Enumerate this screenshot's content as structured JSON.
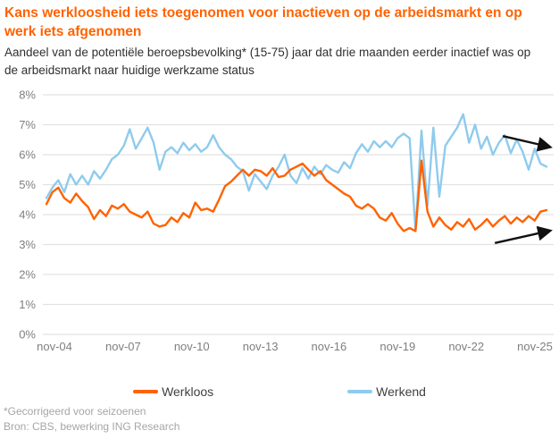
{
  "header": {
    "title": "Kans werkloosheid iets toegenomen voor inactieven op de arbeidsmarkt en op werk iets afgenomen",
    "subtitle": "Aandeel van de potentiële beroepsbevolking* (15-75) jaar dat drie maanden eerder inactief was op de arbeidsmarkt naar huidige werkzame status"
  },
  "chart_data": {
    "type": "line",
    "title": "Kans werkloosheid iets toegenomen voor inactieven op de arbeidsmarkt en op werk iets afgenomen",
    "subtitle": "Aandeel van de potentiële beroepsbevolking* (15-75) jaar dat drie maanden eerder inactief was op de arbeidsmarkt naar huidige werkzame status",
    "x_unit": "months since nov-2004 (values sampled quarterly)",
    "x_step_months": 3,
    "x_tick_months": [
      0,
      36,
      72,
      108,
      144,
      180,
      216,
      252
    ],
    "x_tick_labels": [
      "nov-04",
      "nov-07",
      "nov-10",
      "nov-13",
      "nov-16",
      "nov-19",
      "nov-22",
      "nov-25"
    ],
    "ylim": [
      0,
      8
    ],
    "y_tick_labels": [
      "0%",
      "1%",
      "2%",
      "3%",
      "4%",
      "5%",
      "6%",
      "7%",
      "8%"
    ],
    "grid": "horizontal",
    "legend_position": "bottom",
    "series": [
      {
        "name": "Werkend",
        "color": "#8FCBED",
        "values": [
          4.55,
          4.9,
          5.15,
          4.75,
          5.35,
          5.0,
          5.3,
          5.0,
          5.45,
          5.2,
          5.5,
          5.85,
          6.0,
          6.3,
          6.85,
          6.2,
          6.55,
          6.9,
          6.4,
          5.5,
          6.1,
          6.25,
          6.05,
          6.4,
          6.15,
          6.35,
          6.1,
          6.25,
          6.65,
          6.25,
          6.0,
          5.85,
          5.6,
          5.45,
          4.8,
          5.35,
          5.1,
          4.85,
          5.3,
          5.6,
          6.0,
          5.3,
          5.05,
          5.55,
          5.2,
          5.6,
          5.35,
          5.65,
          5.5,
          5.4,
          5.75,
          5.55,
          6.05,
          6.35,
          6.1,
          6.45,
          6.25,
          6.45,
          6.25,
          6.55,
          6.7,
          6.55,
          3.45,
          6.8,
          4.3,
          6.9,
          4.6,
          6.3,
          6.6,
          6.9,
          7.35,
          6.4,
          7.0,
          6.2,
          6.6,
          6.0,
          6.4,
          6.65,
          6.05,
          6.5,
          6.1,
          5.5,
          6.2,
          5.7,
          5.6
        ]
      },
      {
        "name": "Werkloos",
        "color": "#FF6200",
        "values": [
          4.35,
          4.75,
          4.9,
          4.55,
          4.4,
          4.7,
          4.45,
          4.25,
          3.85,
          4.15,
          3.95,
          4.3,
          4.2,
          4.35,
          4.1,
          4.0,
          3.9,
          4.1,
          3.7,
          3.6,
          3.65,
          3.9,
          3.75,
          4.05,
          3.9,
          4.4,
          4.15,
          4.2,
          4.1,
          4.5,
          4.95,
          5.1,
          5.3,
          5.5,
          5.3,
          5.5,
          5.45,
          5.3,
          5.55,
          5.25,
          5.3,
          5.5,
          5.6,
          5.7,
          5.5,
          5.3,
          5.45,
          5.15,
          5.0,
          4.85,
          4.7,
          4.6,
          4.3,
          4.2,
          4.35,
          4.2,
          3.9,
          3.8,
          4.05,
          3.7,
          3.45,
          3.55,
          3.45,
          5.8,
          4.1,
          3.6,
          3.9,
          3.65,
          3.5,
          3.75,
          3.6,
          3.85,
          3.5,
          3.65,
          3.85,
          3.6,
          3.8,
          3.95,
          3.7,
          3.9,
          3.75,
          3.95,
          3.8,
          4.1,
          4.15
        ]
      }
    ],
    "annotations": [
      {
        "type": "arrow",
        "meaning": "werkend-trend-down",
        "from_month": 230,
        "from_value": 6.62,
        "to_month": 253,
        "to_value": 6.27
      },
      {
        "type": "arrow",
        "meaning": "werkloos-trend-up",
        "from_month": 226,
        "from_value": 3.05,
        "to_month": 253,
        "to_value": 3.45
      }
    ]
  },
  "legend": [
    {
      "label": "Werkloos",
      "color": "#FF6200"
    },
    {
      "label": "Werkend",
      "color": "#8FCBED"
    }
  ],
  "footnotes": [
    "*Gecorrigeerd voor seizoenen",
    "Bron: CBS, bewerking ING Research"
  ],
  "colors": {
    "title": "#FF6200",
    "subtitle": "#2f2f2f",
    "gridline": "#e2e2e2",
    "axis_text": "#7f7f7f",
    "legend_text": "#404040",
    "footnote_text": "#a6a6a6",
    "arrow": "#111111"
  }
}
